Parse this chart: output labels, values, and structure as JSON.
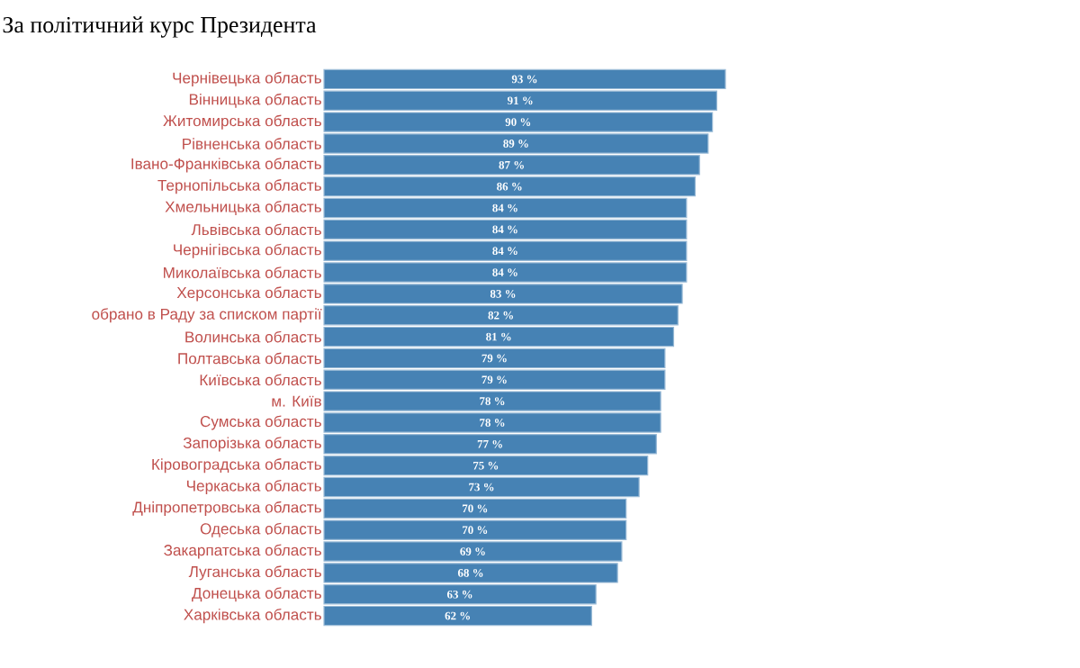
{
  "chart_data": {
    "type": "bar",
    "orientation": "horizontal",
    "title": "За політичний курс Президента",
    "categories": [
      "Чернівецька область",
      "Вінницька область",
      "Житомирська область",
      "Рівненська область",
      "Івано-Франківська область",
      "Тернопільська область",
      "Хмельницька область",
      "Львівська область",
      "Чернігівська область",
      "Миколаївська область",
      "Херсонська область",
      "обрано в Раду за списком партії",
      "Волинська область",
      "Полтавська область",
      "Київська область",
      "м. Київ",
      "Сумська область",
      "Запорізька область",
      "Кіровоградська область",
      "Черкаська область",
      "Дніпропетровська область",
      "Одеська область",
      "Закарпатська область",
      "Луганська область",
      "Донецька область",
      "Харківська область"
    ],
    "values": [
      93,
      91,
      90,
      89,
      87,
      86,
      84,
      84,
      84,
      84,
      83,
      82,
      81,
      79,
      79,
      78,
      78,
      77,
      75,
      73,
      70,
      70,
      69,
      68,
      63,
      62
    ],
    "value_labels": [
      "93 %",
      "91 %",
      "90 %",
      "89 %",
      "87 %",
      "86 %",
      "84 %",
      "84 %",
      "84 %",
      "84 %",
      "83 %",
      "82 %",
      "81 %",
      "79 %",
      "79 %",
      "78 %",
      "78 %",
      "77 %",
      "75 %",
      "73 %",
      "70 %",
      "70 %",
      "69 %",
      "68 %",
      "63 %",
      "62 %"
    ],
    "color": "#4682b4"
  }
}
